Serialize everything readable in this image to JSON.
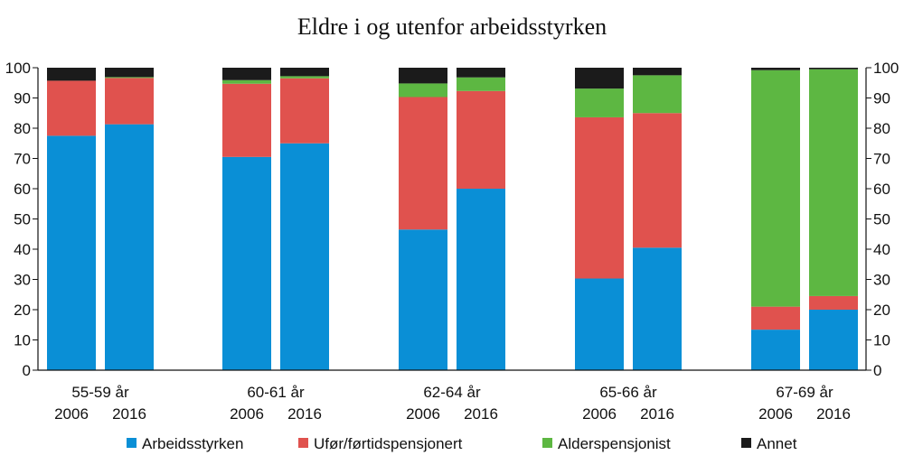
{
  "chart_data": {
    "type": "bar",
    "stacked": true,
    "title": "Eldre i og utenfor arbeidsstyrken",
    "ylim": [
      0,
      100
    ],
    "yticks": [
      0,
      10,
      20,
      30,
      40,
      50,
      60,
      70,
      80,
      90,
      100
    ],
    "groups": [
      {
        "label": "55-59 år",
        "bars": [
          {
            "year": "2006",
            "values": [
              77.5,
              18.2,
              0,
              4.3
            ]
          },
          {
            "year": "2016",
            "values": [
              81.3,
              15.3,
              0.3,
              3.1
            ]
          }
        ]
      },
      {
        "label": "60-61 år",
        "bars": [
          {
            "year": "2006",
            "values": [
              70.5,
              24.2,
              1.2,
              4.1
            ]
          },
          {
            "year": "2016",
            "values": [
              75.0,
              21.5,
              0.7,
              2.8
            ]
          }
        ]
      },
      {
        "label": "62-64 år",
        "bars": [
          {
            "year": "2006",
            "values": [
              46.5,
              43.8,
              4.5,
              5.2
            ]
          },
          {
            "year": "2016",
            "values": [
              60.0,
              32.3,
              4.5,
              3.2
            ]
          }
        ]
      },
      {
        "label": "65-66 år",
        "bars": [
          {
            "year": "2006",
            "values": [
              30.3,
              53.3,
              9.5,
              6.9
            ]
          },
          {
            "year": "2016",
            "values": [
              40.5,
              44.5,
              12.5,
              2.5
            ]
          }
        ]
      },
      {
        "label": "67-69 år",
        "bars": [
          {
            "year": "2006",
            "values": [
              13.4,
              7.6,
              78.2,
              0.8
            ]
          },
          {
            "year": "2016",
            "values": [
              20.0,
              4.5,
              75.0,
              0.5
            ]
          }
        ]
      }
    ],
    "series": [
      {
        "name": "Arbeidsstyrken",
        "color": "#0a8fd6"
      },
      {
        "name": "Ufør/førtidspensjonert",
        "color": "#e0524e"
      },
      {
        "name": "Alderspensjonist",
        "color": "#5db742"
      },
      {
        "name": "Annet",
        "color": "#1b1b1b"
      }
    ],
    "legend_position": "bottom",
    "grid": false
  }
}
